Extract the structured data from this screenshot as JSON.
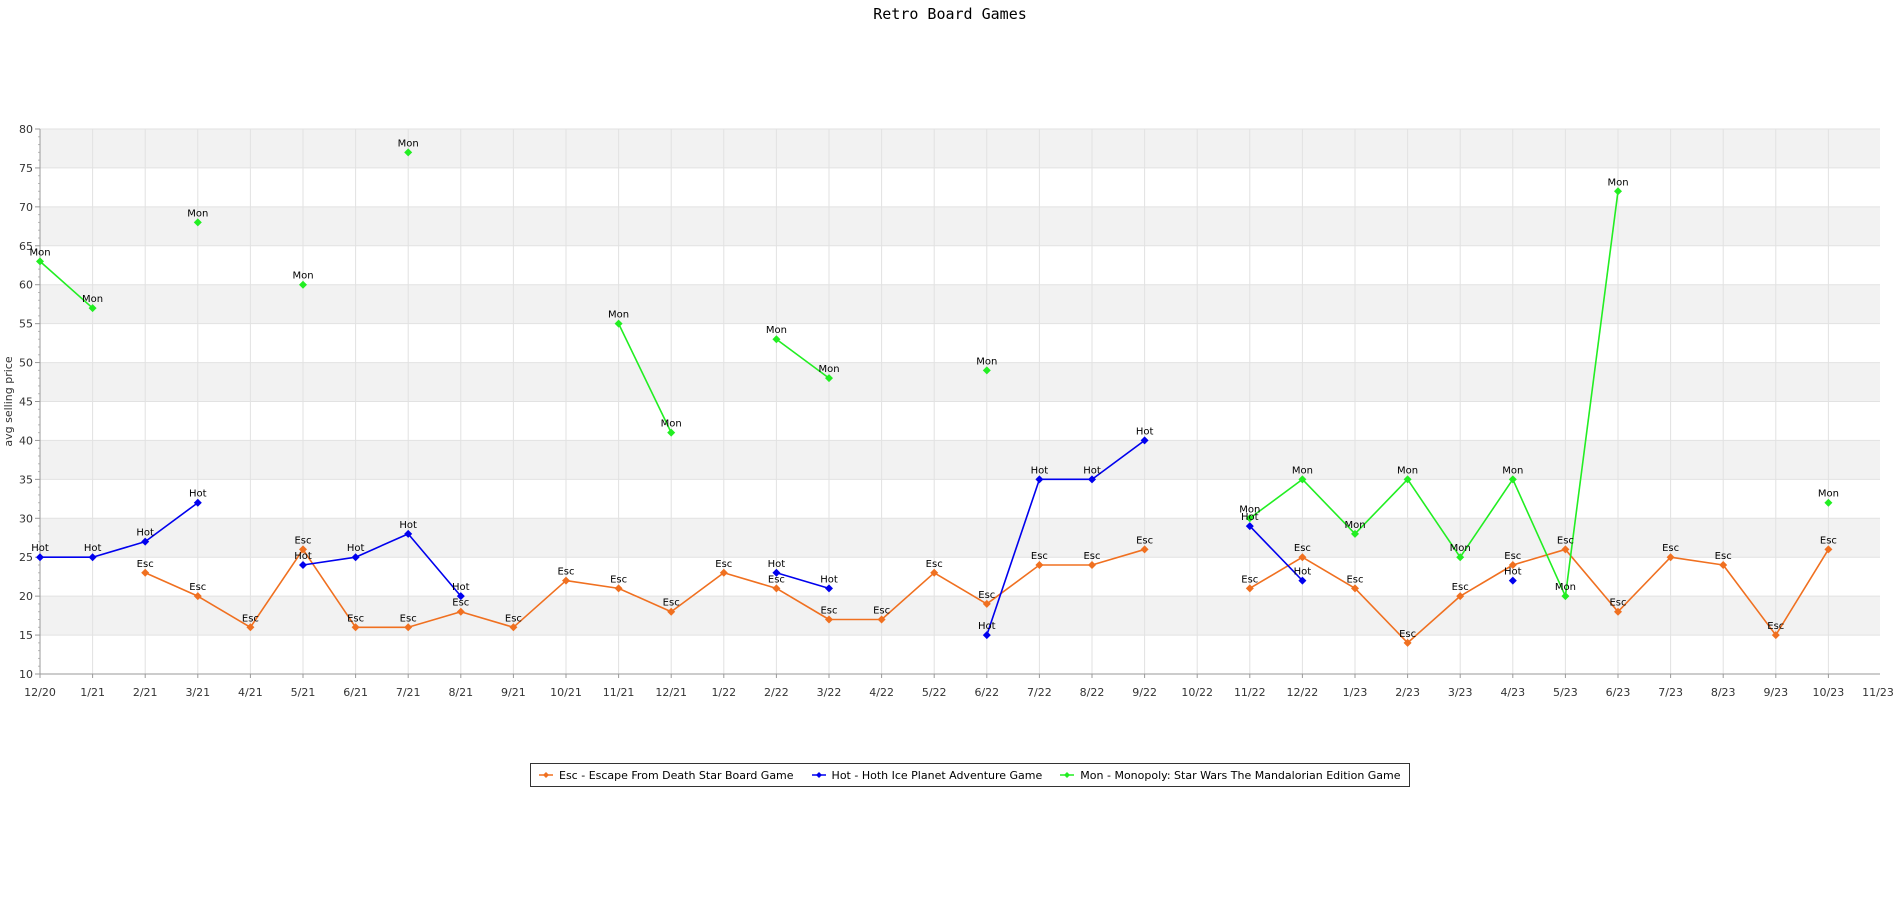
{
  "chart_data": {
    "type": "line",
    "title": "Retro Board Games",
    "xlabel": "",
    "ylabel": "avg selling price",
    "ylim": [
      10,
      80
    ],
    "yticks": [
      10,
      15,
      20,
      25,
      30,
      35,
      40,
      45,
      50,
      55,
      60,
      65,
      70,
      75,
      80
    ],
    "categories": [
      "12/20",
      "1/21",
      "2/21",
      "3/21",
      "4/21",
      "5/21",
      "6/21",
      "7/21",
      "8/21",
      "9/21",
      "10/21",
      "11/21",
      "12/21",
      "1/22",
      "2/22",
      "3/22",
      "4/22",
      "5/22",
      "6/22",
      "7/22",
      "8/22",
      "9/22",
      "10/22",
      "11/22",
      "12/22",
      "1/23",
      "2/23",
      "3/23",
      "4/23",
      "5/23",
      "6/23",
      "7/23",
      "8/23",
      "9/23",
      "10/23",
      "11/23"
    ],
    "grid": true,
    "legend_position": "bottom",
    "series": [
      {
        "name": "Esc - Escape From Death Star Board Game",
        "point_label": "Esc",
        "color": "#f07020",
        "values": [
          null,
          null,
          23,
          20,
          16,
          26,
          16,
          16,
          18,
          16,
          22,
          21,
          18,
          23,
          21,
          17,
          17,
          23,
          19,
          24,
          24,
          26,
          null,
          21,
          25,
          21,
          14,
          20,
          24,
          26,
          18,
          25,
          24,
          15,
          26,
          null
        ]
      },
      {
        "name": "Hot - Hoth Ice Planet Adventure Game",
        "point_label": "Hot",
        "color": "#0000ee",
        "values": [
          25,
          25,
          27,
          32,
          null,
          24,
          25,
          28,
          20,
          null,
          null,
          null,
          null,
          null,
          23,
          21,
          null,
          null,
          15,
          35,
          35,
          40,
          null,
          29,
          22,
          null,
          null,
          null,
          22,
          null,
          null,
          null,
          null,
          null,
          null,
          null
        ]
      },
      {
        "name": "Mon - Monopoly: Star Wars The Mandalorian Edition Game",
        "point_label": "Mon",
        "color": "#22ee22",
        "values": [
          63,
          57,
          null,
          68,
          null,
          60,
          null,
          77,
          null,
          null,
          null,
          55,
          41,
          null,
          53,
          48,
          null,
          null,
          49,
          null,
          null,
          null,
          null,
          30,
          35,
          28,
          35,
          25,
          35,
          20,
          72,
          null,
          null,
          null,
          32,
          null
        ]
      }
    ]
  }
}
